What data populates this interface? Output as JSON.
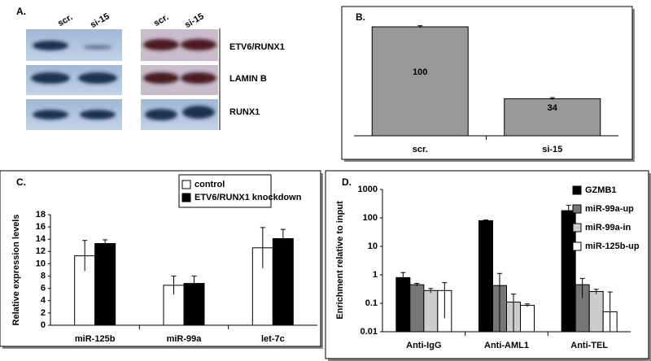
{
  "blot": {
    "label": "A.",
    "lanes": [
      "scr.",
      "si-15",
      "scr.",
      "si-15"
    ],
    "rows": [
      "ETV6/RUNX1",
      "LAMIN B",
      "RUNX1"
    ]
  },
  "chart_data": [
    {
      "type": "bar",
      "label": "B.",
      "categories": [
        "scr.",
        "si-15"
      ],
      "values": [
        100,
        34
      ],
      "errors": [
        1,
        1
      ],
      "color": "#999999",
      "ylim": [
        0,
        100
      ]
    },
    {
      "type": "bar",
      "label": "C.",
      "ylabel": "Relative expression levels",
      "categories": [
        "miR-125b",
        "miR-99a",
        "let-7c"
      ],
      "series": [
        {
          "name": "control",
          "color": "#ffffff",
          "values": [
            11.3,
            6.5,
            12.6
          ],
          "errors": [
            2.5,
            1.5,
            3.3
          ]
        },
        {
          "name": "ETV6/RUNX1 knockdown",
          "color": "#000000",
          "values": [
            13.3,
            6.8,
            14.1
          ],
          "errors": [
            0.6,
            1.2,
            1.5
          ]
        }
      ],
      "ylim": [
        0,
        18
      ],
      "yticks": [
        0,
        2,
        4,
        6,
        8,
        10,
        12,
        14,
        16,
        18
      ],
      "legend": "top-right"
    },
    {
      "type": "bar",
      "label": "D.",
      "ylabel": "Enrichment relative to input",
      "categories": [
        "Anti-IgG",
        "Anti-AML1",
        "Anti-TEL"
      ],
      "log": true,
      "series": [
        {
          "name": "GZMB1",
          "color": "#000000",
          "values": [
            0.8,
            80,
            180
          ],
          "errors": [
            0.4,
            5,
            100
          ]
        },
        {
          "name": "miR-99a-up",
          "color": "#777777",
          "values": [
            0.45,
            0.42,
            0.45
          ],
          "errors": [
            0.05,
            0.7,
            0.3
          ]
        },
        {
          "name": "miR-99a-in",
          "color": "#cccccc",
          "values": [
            0.28,
            0.11,
            0.26
          ],
          "errors": [
            0.05,
            0.1,
            0.05
          ]
        },
        {
          "name": "miR-125b-up",
          "color": "#ffffff",
          "values": [
            0.28,
            0.085,
            0.05
          ],
          "errors": [
            0.25,
            0.01,
            0.2
          ]
        }
      ],
      "ylim": [
        0.01,
        1000
      ],
      "yticks": [
        0.01,
        0.1,
        1,
        10,
        100,
        1000
      ],
      "legend": "right"
    }
  ]
}
